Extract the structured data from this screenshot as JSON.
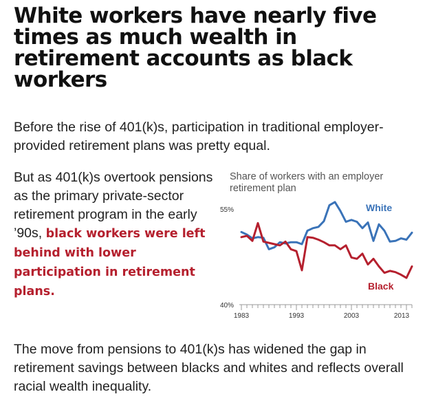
{
  "headline": "White workers have nearly five times as much wealth in retirement accounts as black workers",
  "intro": "Before the rise of 401(k)s, participation in traditional employer-provided retirement plans was pretty equal.",
  "left_text": {
    "plain": "But as 401(k)s overtook pensions as the primary private-sector retirement program in the early ’90s,",
    "highlight": "black workers were left behind with lower participation in retirement plans."
  },
  "outro": "The move from pensions to 401(k)s has widened the gap in retirement savings between blacks and whites and reflects overall racial wealth inequality.",
  "colors": {
    "white_series": "#3a73b8",
    "black_series": "#b5202e",
    "highlight_text": "#b5202e"
  },
  "chart_data": {
    "type": "line",
    "title": "Share of workers with an employer retirement plan",
    "xlabel": "",
    "ylabel": "",
    "xlim": [
      1983,
      2014
    ],
    "ylim": [
      40,
      55
    ],
    "x_tick_labels": [
      "1983",
      "1993",
      "2003",
      "2013"
    ],
    "y_tick_labels": [
      "55%",
      "40%"
    ],
    "x": [
      1983,
      1984,
      1985,
      1986,
      1987,
      1988,
      1989,
      1990,
      1991,
      1992,
      1993,
      1994,
      1995,
      1996,
      1997,
      1998,
      1999,
      2000,
      2001,
      2002,
      2003,
      2004,
      2005,
      2006,
      2007,
      2008,
      2009,
      2010,
      2011,
      2012,
      2013,
      2014
    ],
    "series": [
      {
        "name": "White",
        "values": [
          51.4,
          51.0,
          50.4,
          50.6,
          50.5,
          48.7,
          49.0,
          49.8,
          49.6,
          49.8,
          49.8,
          49.5,
          51.6,
          52.0,
          52.2,
          53.1,
          55.6,
          56.1,
          54.7,
          53.0,
          53.3,
          53.0,
          52.0,
          52.9,
          50.0,
          52.6,
          51.6,
          49.9,
          50.0,
          50.4,
          50.2,
          51.3
        ]
      },
      {
        "name": "Black",
        "values": [
          50.6,
          50.8,
          50.0,
          52.8,
          49.9,
          49.7,
          49.5,
          49.3,
          49.9,
          48.7,
          48.4,
          45.4,
          50.6,
          50.5,
          50.2,
          49.8,
          49.3,
          49.3,
          48.7,
          49.3,
          47.4,
          47.2,
          48.0,
          46.3,
          47.2,
          46.0,
          45.0,
          45.3,
          45.1,
          44.7,
          44.2,
          46.0
        ]
      }
    ],
    "grid": false
  }
}
